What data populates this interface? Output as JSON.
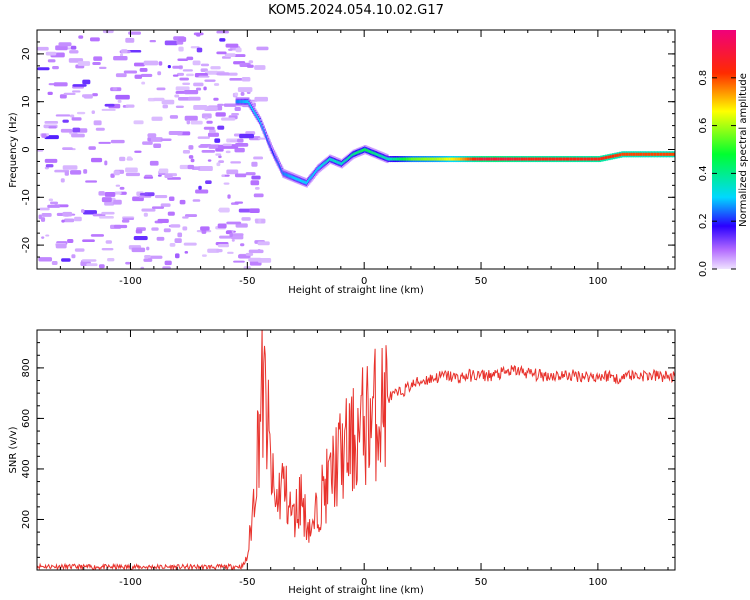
{
  "title": "KOM5.2024.054.10.02.G17",
  "chart_data": [
    {
      "type": "heatmap",
      "xlabel": "Height of straight line (km)",
      "ylabel": "Frequency (Hz)",
      "xlim": [
        -140,
        133
      ],
      "ylim": [
        -25,
        25
      ],
      "xticks": [
        -100,
        -50,
        0,
        50,
        100
      ],
      "yticks": [
        -20,
        -10,
        0,
        10,
        20
      ],
      "colorbar": {
        "label": "Normalized spectral amplitude",
        "range": [
          0,
          1
        ],
        "ticks": [
          0.0,
          0.2,
          0.4,
          0.6,
          0.8
        ]
      },
      "ridge": {
        "x": [
          -55,
          -50,
          -45,
          -40,
          -35,
          -30,
          -25,
          -20,
          -15,
          -10,
          -5,
          0,
          5,
          10,
          20,
          30,
          40,
          50,
          60,
          70,
          80,
          90,
          100,
          110,
          120,
          133
        ],
        "y": [
          10,
          10,
          6,
          0,
          -5,
          -6,
          -7,
          -4,
          -2,
          -3,
          -1,
          0,
          -1,
          -2,
          -2,
          -2,
          -2,
          -2,
          -2,
          -2,
          -2,
          -2,
          -2,
          -1,
          -1,
          -1
        ],
        "amplitude": [
          0.25,
          0.3,
          0.3,
          0.2,
          0.25,
          0.3,
          0.3,
          0.3,
          0.35,
          0.35,
          0.4,
          0.45,
          0.4,
          0.35,
          0.55,
          0.6,
          0.7,
          0.9,
          0.9,
          0.85,
          0.85,
          0.85,
          0.85,
          0.8,
          0.8,
          0.8
        ]
      }
    },
    {
      "type": "line",
      "xlabel": "Height of straight line (km)",
      "ylabel": "SNR (v/v)",
      "xlim": [
        -140,
        133
      ],
      "ylim": [
        0,
        950
      ],
      "xticks": [
        -100,
        -50,
        0,
        50,
        100
      ],
      "yticks": [
        200,
        400,
        600,
        800
      ],
      "series": [
        {
          "color": "#e8322c",
          "x": [
            -140,
            -120,
            -100,
            -80,
            -60,
            -52,
            -50,
            -48,
            -46,
            -44,
            -42,
            -40,
            -38,
            -35,
            -32,
            -30,
            -27,
            -25,
            -22,
            -20,
            -18,
            -15,
            -12,
            -10,
            -7,
            -5,
            -2,
            0,
            3,
            5,
            8,
            10,
            15,
            20,
            25,
            30,
            35,
            40,
            45,
            50,
            55,
            60,
            65,
            70,
            75,
            80,
            90,
            100,
            105,
            108,
            109,
            110,
            115,
            120,
            133
          ],
          "y": [
            15,
            12,
            12,
            12,
            12,
            15,
            50,
            200,
            450,
            700,
            650,
            400,
            250,
            350,
            250,
            200,
            300,
            200,
            150,
            250,
            300,
            350,
            420,
            450,
            480,
            500,
            540,
            580,
            600,
            620,
            650,
            680,
            700,
            730,
            750,
            760,
            770,
            760,
            770,
            770,
            770,
            780,
            790,
            780,
            770,
            770,
            770,
            765,
            770,
            760,
            720,
            780,
            770,
            770,
            765
          ]
        }
      ]
    }
  ]
}
